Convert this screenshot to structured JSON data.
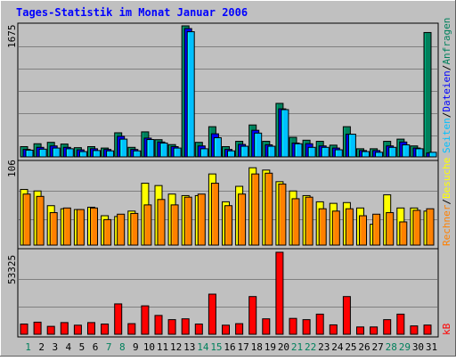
{
  "chart_data": [
    {
      "type": "bar",
      "title": "Tages-Statistik im Monat Januar 2006",
      "panel": "requests",
      "categories": [
        "1",
        "2",
        "3",
        "4",
        "5",
        "6",
        "7",
        "8",
        "9",
        "10",
        "11",
        "12",
        "13",
        "14",
        "15",
        "16",
        "17",
        "18",
        "19",
        "20",
        "21",
        "22",
        "23",
        "24",
        "25",
        "26",
        "27",
        "28",
        "29",
        "30",
        "31"
      ],
      "weekend_days": [
        "1",
        "7",
        "8",
        "14",
        "15",
        "21",
        "22",
        "28",
        "29"
      ],
      "ylabel_parts": [
        "Anfragen",
        "Dateien",
        "Seiten"
      ],
      "ylim": [
        0,
        1675
      ],
      "ymax_label": "1675",
      "series": [
        {
          "name": "Anfragen",
          "color": "#00805c",
          "values": [
            131,
            168,
            186,
            164,
            118,
            131,
            113,
            308,
            122,
            320,
            220,
            157,
            1675,
            186,
            386,
            131,
            199,
            408,
            199,
            684,
            250,
            213,
            199,
            150,
            386,
            104,
            104,
            199,
            227,
            140,
            1590
          ]
        },
        {
          "name": "Dateien",
          "color": "#0000ff",
          "values": [
            95,
            122,
            140,
            122,
            90,
            104,
            95,
            263,
            95,
            240,
            190,
            131,
            1640,
            140,
            295,
            95,
            159,
            340,
            154,
            614,
            177,
            168,
            140,
            113,
            290,
            81,
            81,
            140,
            190,
            113,
            50
          ]
        },
        {
          "name": "Seiten",
          "color": "#00c0ff",
          "values": [
            86,
            99,
            113,
            104,
            68,
            81,
            77,
            227,
            77,
            222,
            177,
            113,
            1600,
            104,
            245,
            77,
            136,
            304,
            136,
            604,
            168,
            122,
            122,
            91,
            290,
            68,
            59,
            122,
            154,
            104,
            59
          ]
        }
      ]
    },
    {
      "type": "bar",
      "panel": "visits",
      "ylabel_parts": [
        "Besuche",
        "Rechner"
      ],
      "ylim": [
        0,
        106
      ],
      "ymax_label": "106",
      "series": [
        {
          "name": "Besuche",
          "color": "#ffff00",
          "values": [
            72,
            70,
            51,
            47,
            46,
            49,
            38,
            37,
            44,
            80,
            77,
            66,
            64,
            64,
            92,
            56,
            76,
            100,
            97,
            82,
            70,
            64,
            56,
            54,
            55,
            48,
            27,
            65,
            48,
            48,
            44
          ]
        },
        {
          "name": "Rechner",
          "color": "#ff8000",
          "values": [
            66,
            63,
            42,
            48,
            46,
            48,
            33,
            40,
            41,
            52,
            59,
            52,
            62,
            66,
            80,
            51,
            66,
            92,
            93,
            79,
            60,
            62,
            47,
            44,
            47,
            38,
            40,
            42,
            30,
            45,
            47
          ]
        }
      ]
    },
    {
      "type": "bar",
      "panel": "kb",
      "ylabel_parts": [
        "kB"
      ],
      "ylim": [
        0,
        53325
      ],
      "ymax_label": "53325",
      "series": [
        {
          "name": "kB",
          "color": "#ff0000",
          "values": [
            6640,
            7870,
            5150,
            7600,
            5900,
            7600,
            6640,
            19750,
            6900,
            18480,
            12240,
            9500,
            10040,
            6640,
            26080,
            5900,
            6900,
            24520,
            10040,
            53325,
            10320,
            9500,
            13080,
            6110,
            24520,
            4750,
            4750,
            9500,
            13080,
            5430,
            5980
          ]
        }
      ]
    }
  ]
}
